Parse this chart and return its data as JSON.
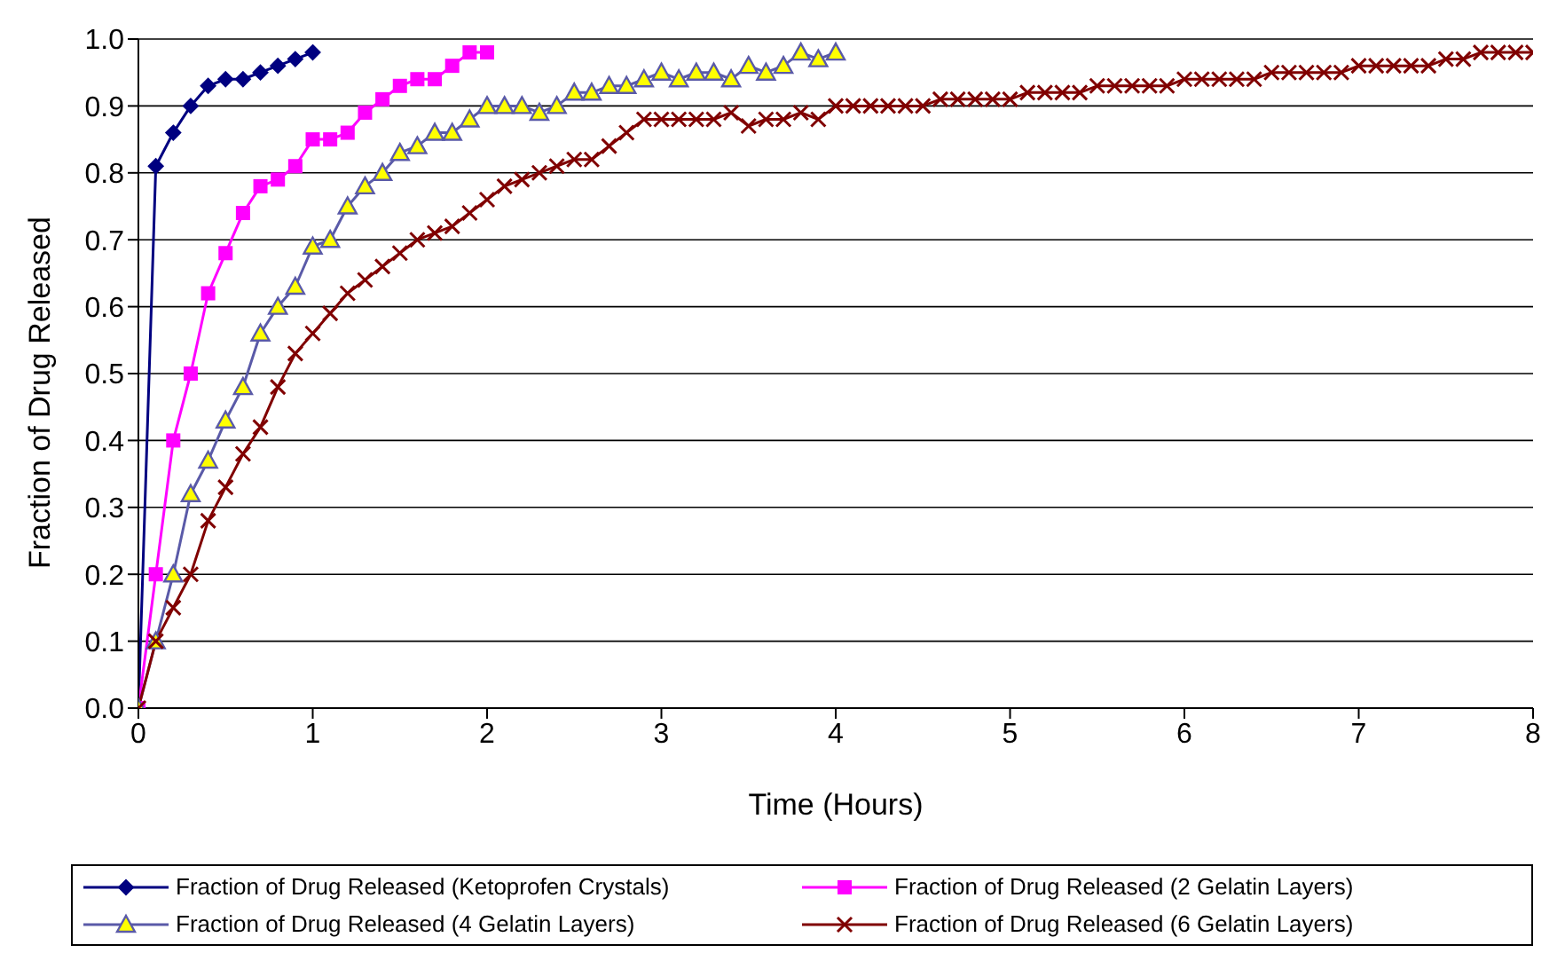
{
  "chart_data": {
    "type": "line",
    "xlabel": "Time (Hours)",
    "ylabel": "Fraction of Drug Released",
    "xlim": [
      0,
      8
    ],
    "xticks": [
      0,
      1,
      2,
      3,
      4,
      5,
      6,
      7,
      8
    ],
    "ylim": [
      0,
      1
    ],
    "yticks": [
      {
        "value": 0,
        "label": "0.0"
      },
      {
        "value": 0.1,
        "label": "0.1"
      },
      {
        "value": 0.2,
        "label": "0.2"
      },
      {
        "value": 0.3,
        "label": "0.3"
      },
      {
        "value": 0.4,
        "label": "0.4"
      },
      {
        "value": 0.5,
        "label": "0.5"
      },
      {
        "value": 0.6,
        "label": "0.6"
      },
      {
        "value": 0.7,
        "label": "0.7"
      },
      {
        "value": 0.8,
        "label": "0.8"
      },
      {
        "value": 0.9,
        "label": "0.9"
      },
      {
        "value": 1,
        "label": "1.0"
      }
    ],
    "grid": "y",
    "legend": "bottom",
    "line_style": "solid",
    "series": [
      {
        "name": "Fraction of Drug Released (Ketoprofen Crystals)",
        "color": "#000080",
        "marker": "diamond",
        "x": [
          0,
          0.1,
          0.2,
          0.3,
          0.4,
          0.5,
          0.6,
          0.7,
          0.8,
          0.9,
          1.0
        ],
        "values": [
          0,
          0.81,
          0.86,
          0.9,
          0.93,
          0.94,
          0.94,
          0.95,
          0.96,
          0.97,
          0.98
        ]
      },
      {
        "name": "Fraction of Drug Released (2 Gelatin Layers)",
        "color": "#ff00ff",
        "marker": "square",
        "x": [
          0,
          0.1,
          0.2,
          0.3,
          0.4,
          0.5,
          0.6,
          0.7,
          0.8,
          0.9,
          1.0,
          1.1,
          1.2,
          1.3,
          1.4,
          1.5,
          1.6,
          1.7,
          1.8,
          1.9,
          2.0
        ],
        "values": [
          0,
          0.2,
          0.4,
          0.5,
          0.62,
          0.68,
          0.74,
          0.78,
          0.79,
          0.81,
          0.85,
          0.85,
          0.86,
          0.89,
          0.91,
          0.93,
          0.94,
          0.94,
          0.96,
          0.98,
          0.98
        ]
      },
      {
        "name": "Fraction of Drug Released (4 Gelatin Layers)",
        "color": "#5a5aa8",
        "marker": "triangle",
        "x": [
          0,
          0.1,
          0.2,
          0.3,
          0.4,
          0.5,
          0.6,
          0.7,
          0.8,
          0.9,
          1.0,
          1.1,
          1.2,
          1.3,
          1.4,
          1.5,
          1.6,
          1.7,
          1.8,
          1.9,
          2.0,
          2.1,
          2.2,
          2.3,
          2.4,
          2.5,
          2.6,
          2.7,
          2.8,
          2.9,
          3.0,
          3.1,
          3.2,
          3.3,
          3.4,
          3.5,
          3.6,
          3.7,
          3.8,
          3.9,
          4.0
        ],
        "values": [
          0,
          0.1,
          0.2,
          0.32,
          0.37,
          0.43,
          0.48,
          0.56,
          0.6,
          0.63,
          0.69,
          0.7,
          0.75,
          0.78,
          0.8,
          0.83,
          0.84,
          0.86,
          0.86,
          0.88,
          0.9,
          0.9,
          0.9,
          0.89,
          0.9,
          0.92,
          0.92,
          0.93,
          0.93,
          0.94,
          0.95,
          0.94,
          0.95,
          0.95,
          0.94,
          0.96,
          0.95,
          0.96,
          0.98,
          0.97,
          0.98
        ]
      },
      {
        "name": "Fraction of Drug Released (6 Gelatin Layers)",
        "color": "#800000",
        "marker": "cross",
        "x": [
          0,
          0.1,
          0.2,
          0.3,
          0.4,
          0.5,
          0.6,
          0.7,
          0.8,
          0.9,
          1.0,
          1.1,
          1.2,
          1.3,
          1.4,
          1.5,
          1.6,
          1.7,
          1.8,
          1.9,
          2.0,
          2.1,
          2.2,
          2.3,
          2.4,
          2.5,
          2.6,
          2.7,
          2.8,
          2.9,
          3.0,
          3.1,
          3.2,
          3.3,
          3.4,
          3.5,
          3.6,
          3.7,
          3.8,
          3.9,
          4.0,
          4.1,
          4.2,
          4.3,
          4.4,
          4.5,
          4.6,
          4.7,
          4.8,
          4.9,
          5.0,
          5.1,
          5.2,
          5.3,
          5.4,
          5.5,
          5.6,
          5.7,
          5.8,
          5.9,
          6.0,
          6.1,
          6.2,
          6.3,
          6.4,
          6.5,
          6.6,
          6.7,
          6.8,
          6.9,
          7.0,
          7.1,
          7.2,
          7.3,
          7.4,
          7.5,
          7.6,
          7.7,
          7.8,
          7.9,
          8.0
        ],
        "values": [
          0,
          0.1,
          0.15,
          0.2,
          0.28,
          0.33,
          0.38,
          0.42,
          0.48,
          0.53,
          0.56,
          0.59,
          0.62,
          0.64,
          0.66,
          0.68,
          0.7,
          0.71,
          0.72,
          0.74,
          0.76,
          0.78,
          0.79,
          0.8,
          0.81,
          0.82,
          0.82,
          0.84,
          0.86,
          0.88,
          0.88,
          0.88,
          0.88,
          0.88,
          0.89,
          0.87,
          0.88,
          0.88,
          0.89,
          0.88,
          0.9,
          0.9,
          0.9,
          0.9,
          0.9,
          0.9,
          0.91,
          0.91,
          0.91,
          0.91,
          0.91,
          0.92,
          0.92,
          0.92,
          0.92,
          0.93,
          0.93,
          0.93,
          0.93,
          0.93,
          0.94,
          0.94,
          0.94,
          0.94,
          0.94,
          0.95,
          0.95,
          0.95,
          0.95,
          0.95,
          0.96,
          0.96,
          0.96,
          0.96,
          0.96,
          0.97,
          0.97,
          0.98,
          0.98,
          0.98,
          0.98
        ]
      }
    ]
  }
}
